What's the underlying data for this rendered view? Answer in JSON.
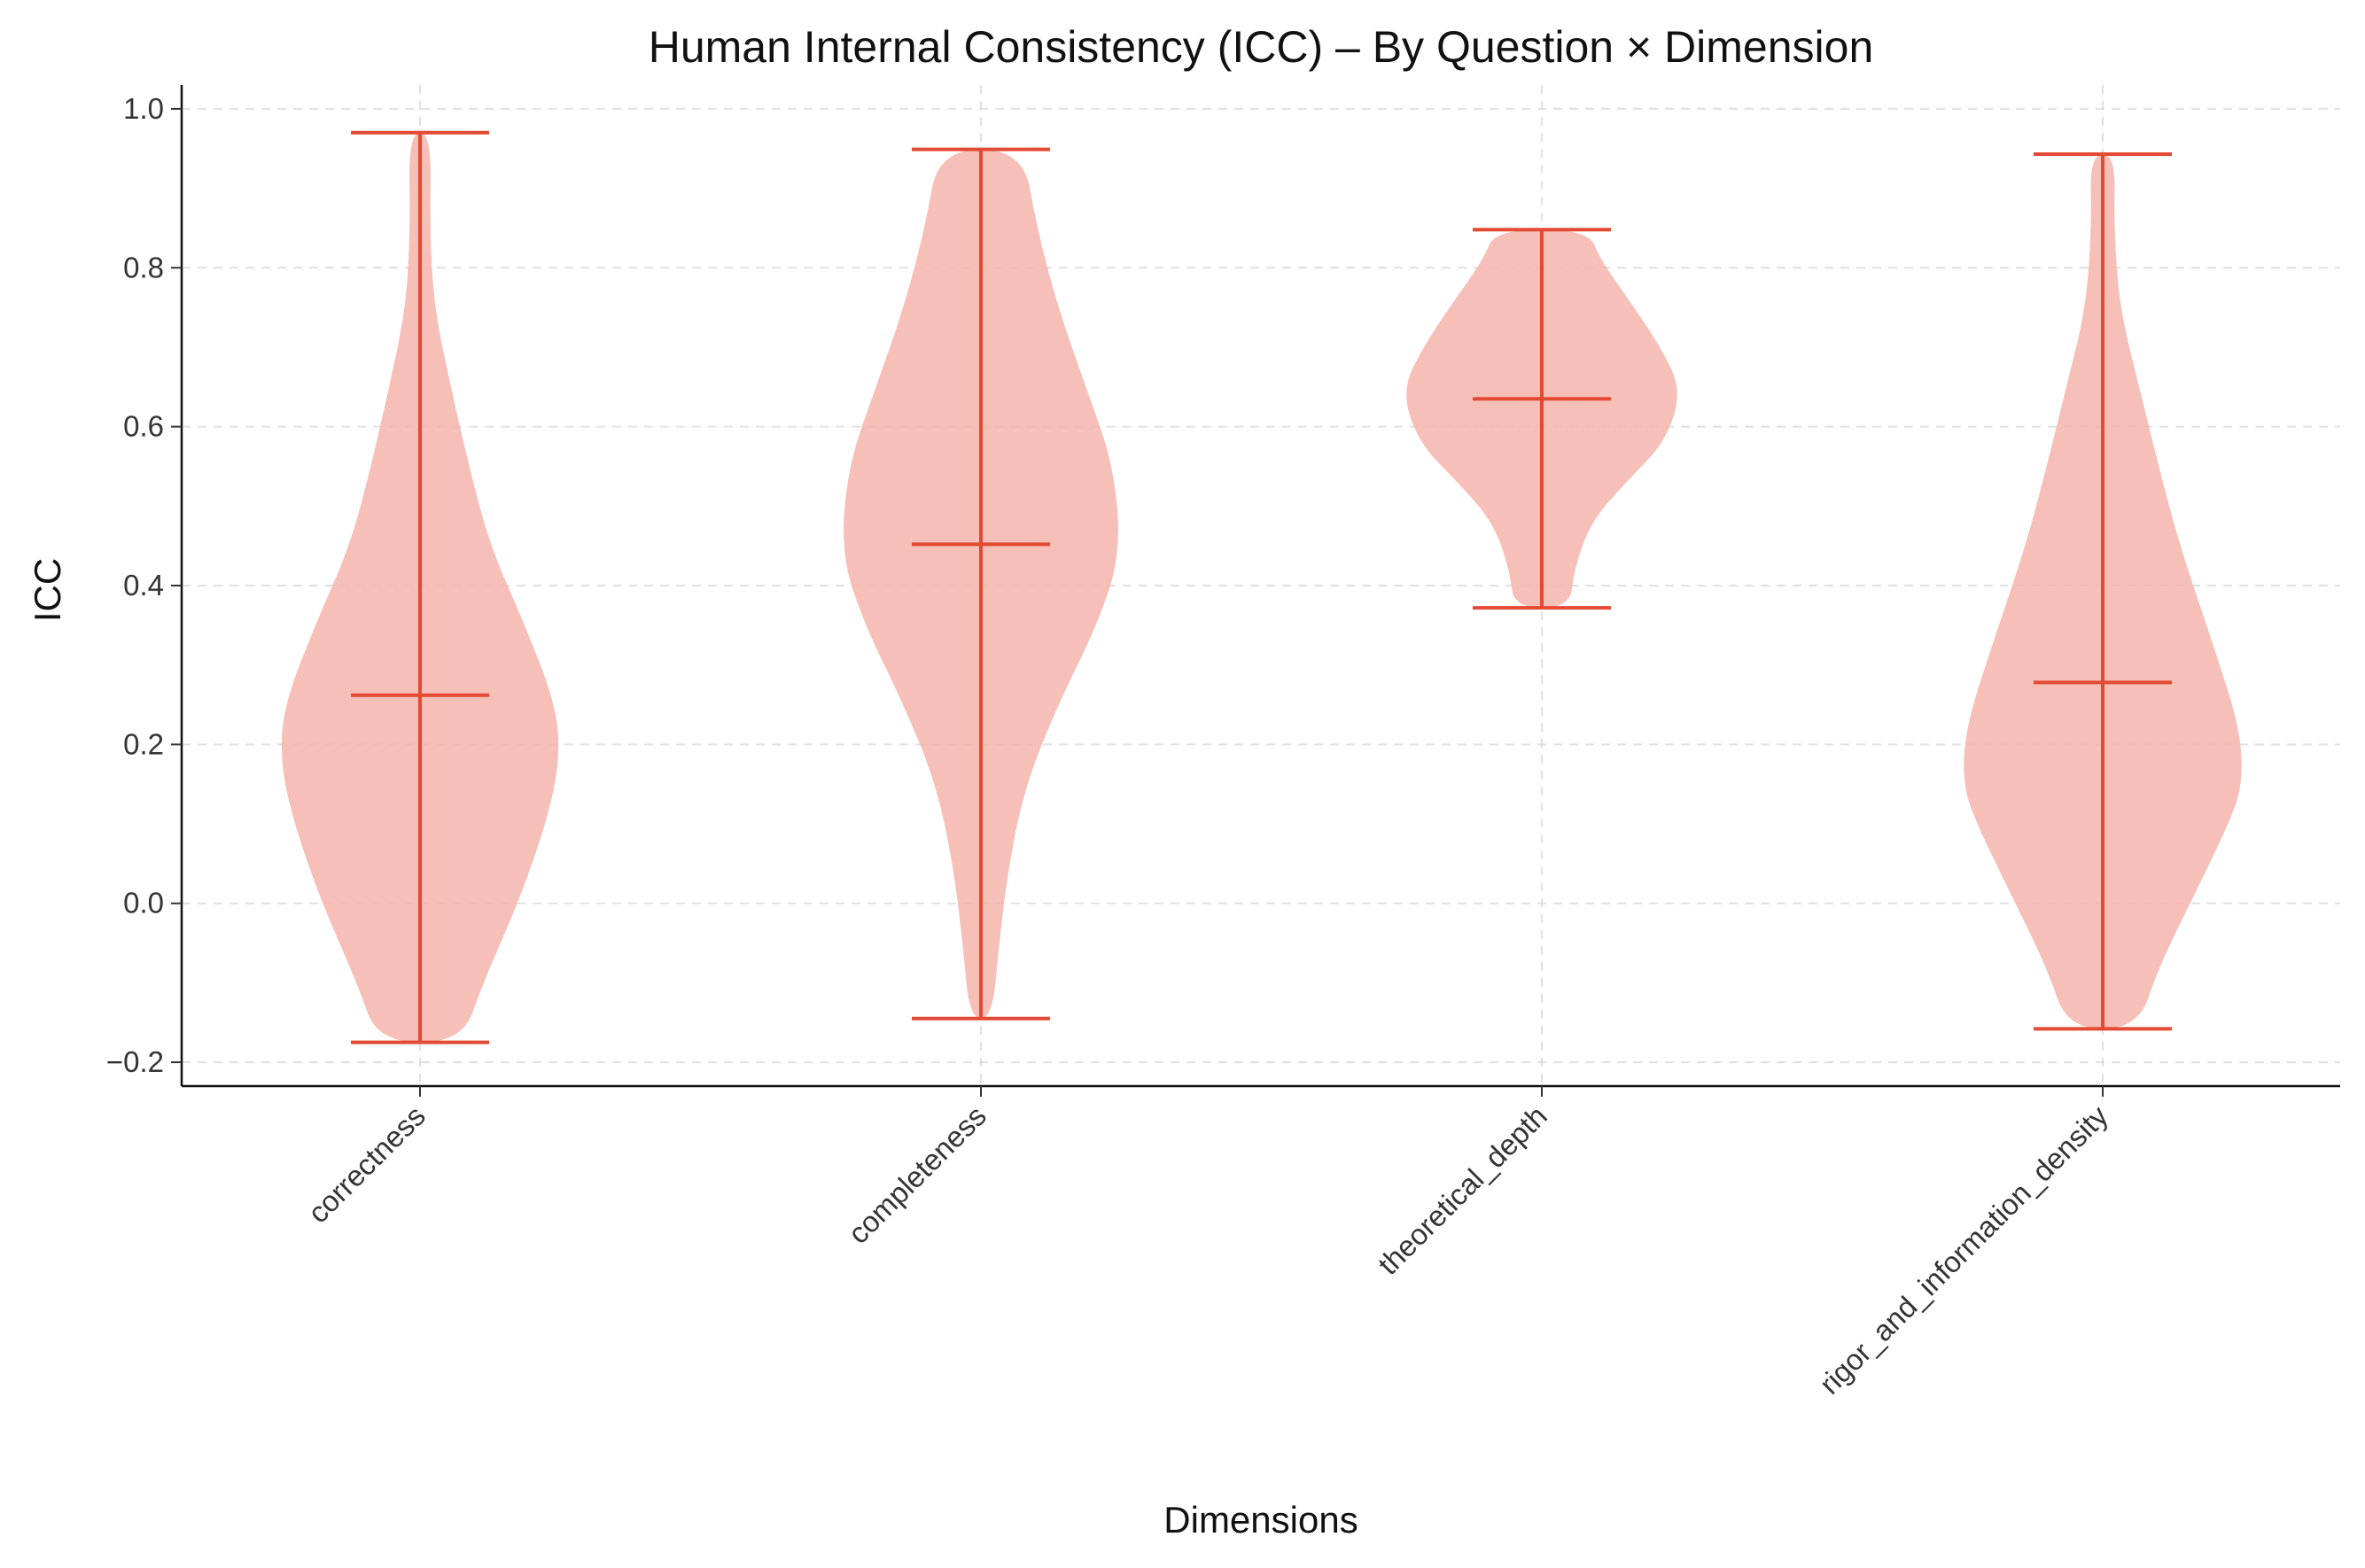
{
  "chart_data": {
    "type": "violin",
    "title": "Human Internal Consistency (ICC) – By Question × Dimension",
    "xlabel": "Dimensions",
    "ylabel": "ICC",
    "ylim": [
      -0.23,
      1.03
    ],
    "yticks": [
      -0.2,
      0.0,
      0.2,
      0.4,
      0.6,
      0.8,
      1.0
    ],
    "ytick_labels": [
      "−0.2",
      "0.0",
      "0.2",
      "0.4",
      "0.6",
      "0.8",
      "1.0"
    ],
    "grid": true,
    "color": "#e34a33",
    "fill_color": "#f4b4ab",
    "categories": [
      "correctness",
      "completeness",
      "theoretical_depth",
      "rigor_and_information_density"
    ],
    "series": [
      {
        "category": "correctness",
        "min": -0.175,
        "median": 0.262,
        "max": 0.97,
        "density": [
          [
            -0.175,
            0.3
          ],
          [
            -0.1,
            0.45
          ],
          [
            0.0,
            0.7
          ],
          [
            0.1,
            0.9
          ],
          [
            0.18,
            1.0
          ],
          [
            0.25,
            0.97
          ],
          [
            0.35,
            0.75
          ],
          [
            0.45,
            0.5
          ],
          [
            0.55,
            0.35
          ],
          [
            0.65,
            0.22
          ],
          [
            0.75,
            0.1
          ],
          [
            0.85,
            0.07
          ],
          [
            0.97,
            0.08
          ]
        ]
      },
      {
        "category": "completeness",
        "min": -0.145,
        "median": 0.452,
        "max": 0.949,
        "density": [
          [
            -0.145,
            0.08
          ],
          [
            -0.05,
            0.13
          ],
          [
            0.05,
            0.2
          ],
          [
            0.15,
            0.32
          ],
          [
            0.25,
            0.55
          ],
          [
            0.35,
            0.83
          ],
          [
            0.44,
            1.0
          ],
          [
            0.55,
            0.95
          ],
          [
            0.65,
            0.75
          ],
          [
            0.75,
            0.55
          ],
          [
            0.85,
            0.4
          ],
          [
            0.949,
            0.3
          ]
        ]
      },
      {
        "category": "theoretical_depth",
        "min": 0.372,
        "median": 0.635,
        "max": 0.848,
        "density": [
          [
            0.372,
            0.2
          ],
          [
            0.42,
            0.23
          ],
          [
            0.48,
            0.35
          ],
          [
            0.53,
            0.6
          ],
          [
            0.58,
            0.88
          ],
          [
            0.645,
            1.0
          ],
          [
            0.7,
            0.85
          ],
          [
            0.76,
            0.62
          ],
          [
            0.81,
            0.42
          ],
          [
            0.848,
            0.33
          ]
        ]
      },
      {
        "category": "rigor_and_information_density",
        "min": -0.158,
        "median": 0.278,
        "max": 0.943,
        "density": [
          [
            -0.158,
            0.25
          ],
          [
            -0.08,
            0.4
          ],
          [
            0.02,
            0.68
          ],
          [
            0.1,
            0.9
          ],
          [
            0.15,
            1.0
          ],
          [
            0.22,
            0.98
          ],
          [
            0.32,
            0.8
          ],
          [
            0.45,
            0.55
          ],
          [
            0.55,
            0.4
          ],
          [
            0.65,
            0.26
          ],
          [
            0.75,
            0.12
          ],
          [
            0.85,
            0.08
          ],
          [
            0.943,
            0.09
          ]
        ]
      }
    ]
  }
}
